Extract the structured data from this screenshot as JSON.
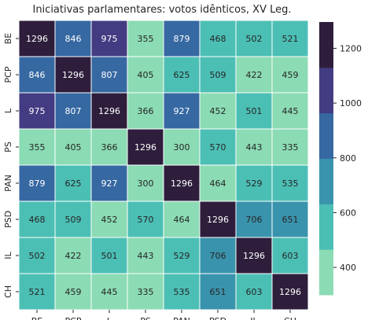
{
  "chart_data": {
    "type": "heatmap",
    "title": "Iniciativas parlamentares: votos idênticos, XV Leg.",
    "row_labels": [
      "BE",
      "PCP",
      "L",
      "PS",
      "PAN",
      "PSD",
      "IL",
      "CH"
    ],
    "col_labels": [
      "BE",
      "PCP",
      "L",
      "PS",
      "PAN",
      "PSD",
      "IL",
      "CH"
    ],
    "values": [
      [
        1296,
        846,
        975,
        355,
        879,
        468,
        502,
        521
      ],
      [
        846,
        1296,
        807,
        405,
        625,
        509,
        422,
        459
      ],
      [
        975,
        807,
        1296,
        366,
        927,
        452,
        501,
        445
      ],
      [
        355,
        405,
        366,
        1296,
        300,
        570,
        443,
        335
      ],
      [
        879,
        625,
        927,
        300,
        1296,
        464,
        529,
        535
      ],
      [
        468,
        509,
        452,
        570,
        464,
        1296,
        706,
        651
      ],
      [
        502,
        422,
        501,
        443,
        529,
        706,
        1296,
        603
      ],
      [
        521,
        459,
        445,
        335,
        535,
        651,
        603,
        1296
      ]
    ],
    "vmin": 300,
    "vmax": 1296,
    "colorbar_ticks": [
      400,
      600,
      800,
      1000,
      1200
    ],
    "palette": [
      "#8bdbb4",
      "#4cbfb5",
      "#3a93ac",
      "#3668a2",
      "#433c82",
      "#2e1e3c"
    ],
    "annotation_colors": {
      "light": "#ffffff",
      "dark": "#262626"
    }
  }
}
